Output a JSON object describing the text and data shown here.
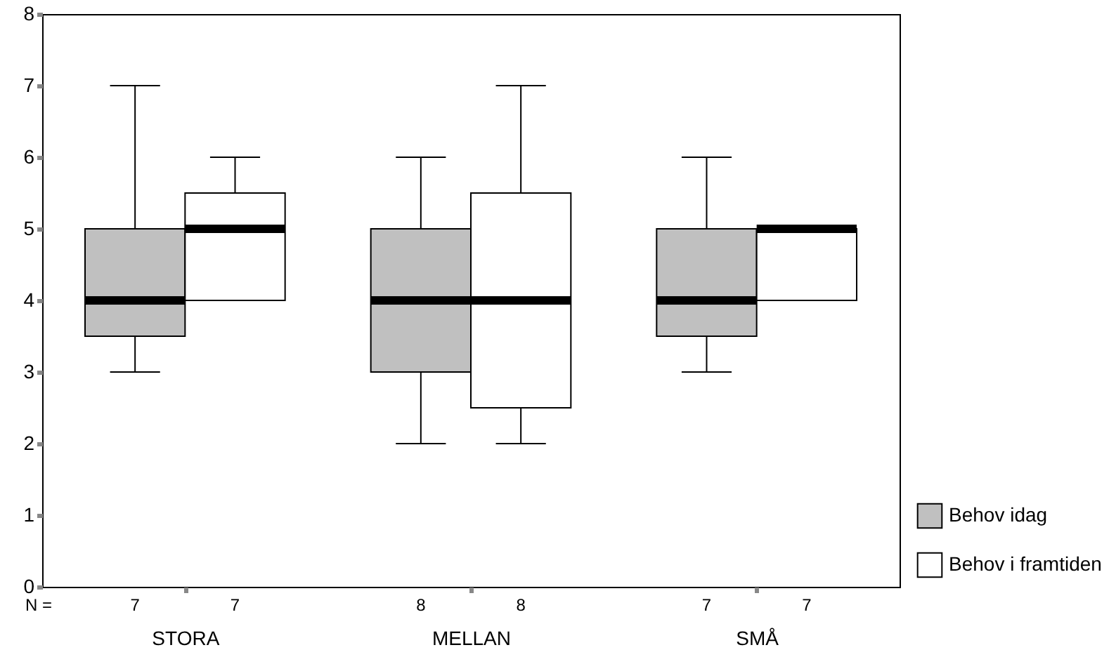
{
  "chart_data": {
    "type": "box",
    "categories": [
      "STORA",
      "MELLAN",
      "SMÅ"
    ],
    "series": [
      {
        "name": "Behov idag",
        "color": "#c0c0c0",
        "boxes": [
          {
            "low": 3,
            "q1": 3.5,
            "median": 4,
            "q3": 5,
            "high": 7
          },
          {
            "low": 2,
            "q1": 3,
            "median": 4,
            "q3": 5,
            "high": 6
          },
          {
            "low": 3,
            "q1": 3.5,
            "median": 4,
            "q3": 5,
            "high": 6
          }
        ]
      },
      {
        "name": "Behov i framtiden",
        "color": "#ffffff",
        "boxes": [
          {
            "low": 4,
            "q1": 4,
            "median": 5,
            "q3": 5.5,
            "high": 6
          },
          {
            "low": 2,
            "q1": 2.5,
            "median": 4,
            "q3": 5.5,
            "high": 7
          },
          {
            "low": 4,
            "q1": 4,
            "median": 5,
            "q3": 5,
            "high": 5
          }
        ]
      }
    ],
    "ylim": [
      0,
      8
    ],
    "yticks": [
      0,
      1,
      2,
      3,
      4,
      5,
      6,
      7,
      8
    ],
    "grid": false,
    "legend": "bottom right",
    "annotations": [
      "N =",
      "7",
      "7",
      "8",
      "8",
      "7",
      "7"
    ]
  }
}
